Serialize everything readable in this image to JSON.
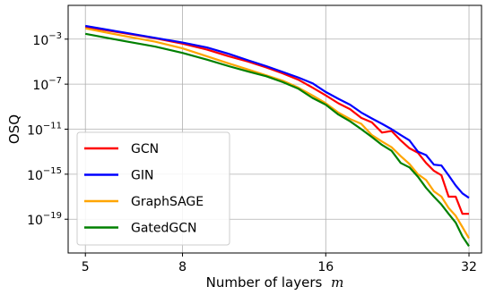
{
  "chart_data": {
    "type": "line",
    "xlabel": "Number of layers",
    "xlabel_math": "m",
    "ylabel": "OSQ",
    "x_scale": "log",
    "y_scale": "log",
    "xlim": [
      4.6,
      34
    ],
    "ylim": [
      1e-22,
      1.0
    ],
    "x_ticks": [
      5,
      8,
      16,
      32
    ],
    "x_tick_labels": [
      "5",
      "8",
      "16",
      "32"
    ],
    "y_ticks": [
      1e-19,
      1e-15,
      1e-11,
      1e-07,
      0.001
    ],
    "y_tick_bases": [
      "10",
      "10",
      "10",
      "10",
      "10"
    ],
    "y_tick_exponents": [
      "−19",
      "−15",
      "−11",
      "−7",
      "−3"
    ],
    "grid": true,
    "legend_position": "lower-left",
    "x": [
      5,
      6,
      7,
      8,
      9,
      10,
      11,
      12,
      13,
      14,
      15,
      16,
      17,
      18,
      19,
      20,
      21,
      22,
      23,
      24,
      25,
      26,
      27,
      28,
      29,
      30,
      31,
      32
    ],
    "series": [
      {
        "name": "GCN",
        "color": "#ff0000",
        "values": [
          0.012,
          0.0035,
          0.0012,
          0.0004,
          0.00012,
          3e-05,
          1e-05,
          3e-06,
          9e-07,
          2.5e-07,
          5e-08,
          1e-08,
          2e-09,
          6e-10,
          1e-10,
          4e-11,
          5e-12,
          7e-12,
          1e-12,
          2e-13,
          8e-14,
          1e-14,
          2e-15,
          8e-16,
          1e-17,
          1e-17,
          3e-19,
          3e-19
        ]
      },
      {
        "name": "GIN",
        "color": "#0000ff",
        "values": [
          0.015,
          0.004,
          0.0013,
          0.0005,
          0.00018,
          5e-05,
          1.3e-05,
          4e-06,
          1.2e-06,
          4e-07,
          1.2e-07,
          2e-08,
          5e-09,
          1.5e-09,
          3e-10,
          9e-11,
          3e-11,
          1e-11,
          3e-12,
          1e-12,
          1e-13,
          5e-14,
          7e-15,
          6e-15,
          8e-16,
          1e-16,
          2e-17,
          8e-18
        ]
      },
      {
        "name": "GraphSAGE",
        "color": "#ffa500",
        "values": [
          0.009,
          0.002,
          0.0006,
          0.00015,
          3e-05,
          7e-06,
          2e-06,
          6e-07,
          2e-07,
          5e-08,
          1e-08,
          2e-09,
          3e-10,
          8e-11,
          3e-11,
          3e-12,
          8e-13,
          2.5e-13,
          4e-14,
          8e-15,
          1e-15,
          3e-16,
          3e-17,
          1e-17,
          1e-18,
          2e-19,
          2e-20,
          2e-21
        ]
      },
      {
        "name": "GatedGCN",
        "color": "#008000",
        "values": [
          0.003,
          0.0007,
          0.00022,
          6e-05,
          1.5e-05,
          4e-06,
          1.3e-06,
          5e-07,
          1.5e-07,
          4e-08,
          6e-09,
          1.5e-09,
          2e-10,
          5e-11,
          1e-11,
          2e-12,
          4e-13,
          1.2e-13,
          1e-14,
          4e-15,
          6e-16,
          6e-17,
          1e-17,
          2e-18,
          3e-19,
          5e-20,
          3e-21,
          4e-22
        ]
      }
    ]
  }
}
